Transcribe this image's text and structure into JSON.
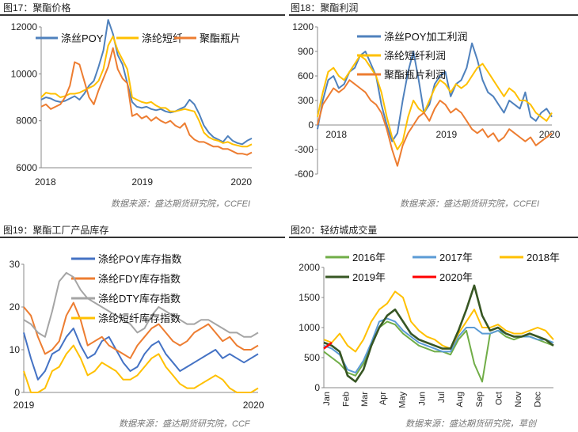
{
  "charts": [
    {
      "title": "图17：聚酯价格",
      "source": "数据来源：盛达期货研究院，CCFEI",
      "chart_data": {
        "type": "line",
        "yticks": [
          "12000",
          "10000",
          "8000",
          "6000"
        ],
        "ylim": [
          6000,
          12000
        ],
        "xticks": [
          "2018",
          "2019",
          "2020"
        ],
        "series": [
          {
            "name": "涤丝POY",
            "color": "#4f81bd",
            "values": [
              8900,
              9000,
              8950,
              8850,
              8800,
              8850,
              8950,
              9050,
              8900,
              9150,
              9500,
              9700,
              10300,
              11000,
              12300,
              11700,
              10800,
              10400,
              9600,
              8800,
              8600,
              8550,
              8600,
              8500,
              8450,
              8500,
              8400,
              8350,
              8400,
              8500,
              8600,
              8900,
              8700,
              8300,
              7800,
              7500,
              7300,
              7200,
              7100,
              7350,
              7150,
              7050,
              7000,
              7150,
              7250
            ]
          },
          {
            "name": "涤纶短纤",
            "color": "#ffc000",
            "values": [
              9000,
              9200,
              9150,
              9150,
              9000,
              9050,
              9150,
              9150,
              9200,
              9300,
              9400,
              9500,
              9700,
              10200,
              11200,
              11600,
              11000,
              10600,
              10200,
              9000,
              8900,
              8800,
              8750,
              8800,
              8650,
              8550,
              8550,
              8400,
              8400,
              8450,
              8500,
              8450,
              8400,
              8000,
              7500,
              7300,
              7200,
              7150,
              7050,
              7100,
              7000,
              6950,
              6900,
              6900,
              7000
            ]
          },
          {
            "name": "聚酯瓶片",
            "color": "#ed7d31",
            "values": [
              8600,
              8700,
              8500,
              8600,
              8700,
              9000,
              9500,
              10500,
              10400,
              9700,
              9000,
              8700,
              9300,
              9800,
              10300,
              11100,
              10200,
              9800,
              9600,
              8200,
              8300,
              8100,
              8200,
              8000,
              8150,
              8000,
              7900,
              8000,
              7800,
              7700,
              7900,
              7400,
              7200,
              7100,
              7100,
              7000,
              6900,
              6900,
              6800,
              6800,
              6700,
              6600,
              6600,
              6550,
              6650
            ]
          }
        ]
      }
    },
    {
      "title": "图18：聚酯利润",
      "source": "数据来源：盛达期货研究院，CCFEI",
      "chart_data": {
        "type": "line",
        "yticks": [
          "1200",
          "900",
          "600",
          "300",
          "0",
          "-300",
          "-600"
        ],
        "ylim": [
          -600,
          1200
        ],
        "xticks": [
          "2018",
          "2019",
          "2020"
        ],
        "series": [
          {
            "name": "涤丝POY加工利润",
            "color": "#4f81bd",
            "values": [
              -50,
              300,
              550,
              600,
              450,
              500,
              650,
              700,
              850,
              900,
              750,
              600,
              250,
              0,
              -200,
              -100,
              300,
              650,
              900,
              550,
              150,
              250,
              500,
              600,
              650,
              350,
              500,
              550,
              700,
              1000,
              800,
              550,
              400,
              350,
              250,
              150,
              300,
              250,
              200,
              400,
              100,
              50,
              150,
              200,
              100
            ]
          },
          {
            "name": "涤纶短纤利润",
            "color": "#ffc000",
            "values": [
              100,
              400,
              650,
              700,
              600,
              550,
              650,
              750,
              850,
              800,
              700,
              600,
              400,
              100,
              -150,
              -300,
              -200,
              100,
              300,
              200,
              150,
              300,
              450,
              550,
              500,
              400,
              500,
              450,
              500,
              600,
              700,
              750,
              650,
              550,
              450,
              350,
              450,
              400,
              300,
              300,
              250,
              150,
              100,
              50,
              150
            ]
          },
          {
            "name": "聚酯瓶片利润",
            "color": "#ed7d31",
            "values": [
              0,
              250,
              350,
              450,
              400,
              450,
              550,
              500,
              450,
              400,
              300,
              250,
              150,
              -50,
              -300,
              -500,
              -250,
              -100,
              0,
              100,
              150,
              50,
              200,
              300,
              250,
              150,
              200,
              150,
              50,
              -50,
              -100,
              -50,
              -150,
              -100,
              -200,
              -150,
              -50,
              -100,
              -150,
              -200,
              -150,
              -250,
              -200,
              -150,
              -100
            ]
          }
        ]
      }
    },
    {
      "title": "图19：聚酯工厂产品库存",
      "source": "数据来源：盛达期货研究院，CCF",
      "chart_data": {
        "type": "line",
        "yticks": [
          "30",
          "20",
          "10",
          "0"
        ],
        "ylim": [
          0,
          30
        ],
        "xticks": [
          "2019",
          "2020"
        ],
        "series": [
          {
            "name": "涤纶POY库存指数",
            "color": "#4472c4",
            "values": [
              14,
              8,
              3,
              5,
              9,
              10,
              13,
              15,
              11,
              8,
              9,
              12,
              13,
              10,
              7,
              5,
              6,
              9,
              11,
              12,
              9,
              7,
              5,
              6,
              7,
              8,
              9,
              10,
              8,
              9,
              8,
              7,
              8,
              9
            ]
          },
          {
            "name": "涤纶FDY库存指数",
            "color": "#ed7d31",
            "values": [
              20,
              18,
              13,
              9,
              10,
              12,
              18,
              21,
              17,
              11,
              12,
              13,
              11,
              10,
              9,
              8,
              11,
              13,
              15,
              16,
              14,
              12,
              11,
              12,
              14,
              15,
              16,
              14,
              12,
              13,
              11,
              10,
              10,
              11
            ]
          },
          {
            "name": "涤纶DTY库存指数",
            "color": "#a5a5a5",
            "values": [
              17,
              16,
              14,
              13,
              19,
              26,
              28,
              27,
              24,
              22,
              21,
              20,
              19,
              18,
              17,
              16,
              14,
              15,
              18,
              20,
              19,
              18,
              17,
              16,
              16,
              17,
              17,
              16,
              15,
              14,
              14,
              13,
              13,
              14
            ]
          },
          {
            "name": "涤纶短纤库存指数",
            "color": "#ffc000",
            "values": [
              5,
              0,
              0,
              1,
              5,
              6,
              9,
              11,
              8,
              4,
              5,
              7,
              6,
              5,
              3,
              3,
              4,
              6,
              8,
              9,
              6,
              4,
              2,
              1,
              1,
              2,
              3,
              4,
              3,
              1,
              0,
              0,
              0,
              1
            ]
          }
        ]
      }
    },
    {
      "title": "图20：轻纺城成交量",
      "source": "数据来源：盛达期货研究院，草创",
      "chart_data": {
        "type": "line",
        "yticks": [
          "2000",
          "1500",
          "1000",
          "500",
          "0"
        ],
        "ylim": [
          0,
          2000
        ],
        "xticks": [
          "Jan",
          "Feb",
          "Mar",
          "Apr",
          "May",
          "Jun",
          "Jul",
          "Aug",
          "Sep",
          "Oct",
          "Nov",
          "Dec"
        ],
        "series": [
          {
            "name": "2016年",
            "color": "#70ad47",
            "values": [
              600,
              500,
              400,
              250,
              200,
              400,
              700,
              1000,
              1100,
              1050,
              900,
              800,
              700,
              650,
              600,
              600,
              550,
              800,
              950,
              400,
              100,
              900,
              950,
              850,
              800,
              850,
              850,
              800,
              750,
              700
            ]
          },
          {
            "name": "2017年",
            "color": "#5b9bd5",
            "values": [
              700,
              650,
              550,
              300,
              250,
              450,
              750,
              1100,
              1150,
              1100,
              950,
              850,
              750,
              700,
              650,
              600,
              600,
              850,
              1000,
              1000,
              900,
              900,
              950,
              900,
              850,
              850,
              850,
              800,
              800,
              750
            ]
          },
          {
            "name": "2018年",
            "color": "#ffc000",
            "values": [
              800,
              750,
              900,
              700,
              600,
              800,
              1100,
              1300,
              1400,
              1600,
              1500,
              1100,
              950,
              850,
              800,
              700,
              650,
              900,
              1100,
              1300,
              1000,
              1000,
              1050,
              950,
              900,
              900,
              950,
              1000,
              950,
              800
            ]
          },
          {
            "name": "2019年",
            "color": "#375623",
            "values": [
              750,
              700,
              600,
              200,
              100,
              300,
              700,
              1000,
              1200,
              1300,
              1100,
              900,
              800,
              750,
              700,
              650,
              650,
              950,
              1300,
              1700,
              1200,
              950,
              1000,
              900,
              850,
              850,
              900,
              850,
              800,
              700
            ]
          },
          {
            "name": "2020年",
            "color": "#ff0000",
            "values": [
              650,
              750
            ]
          }
        ]
      }
    }
  ]
}
